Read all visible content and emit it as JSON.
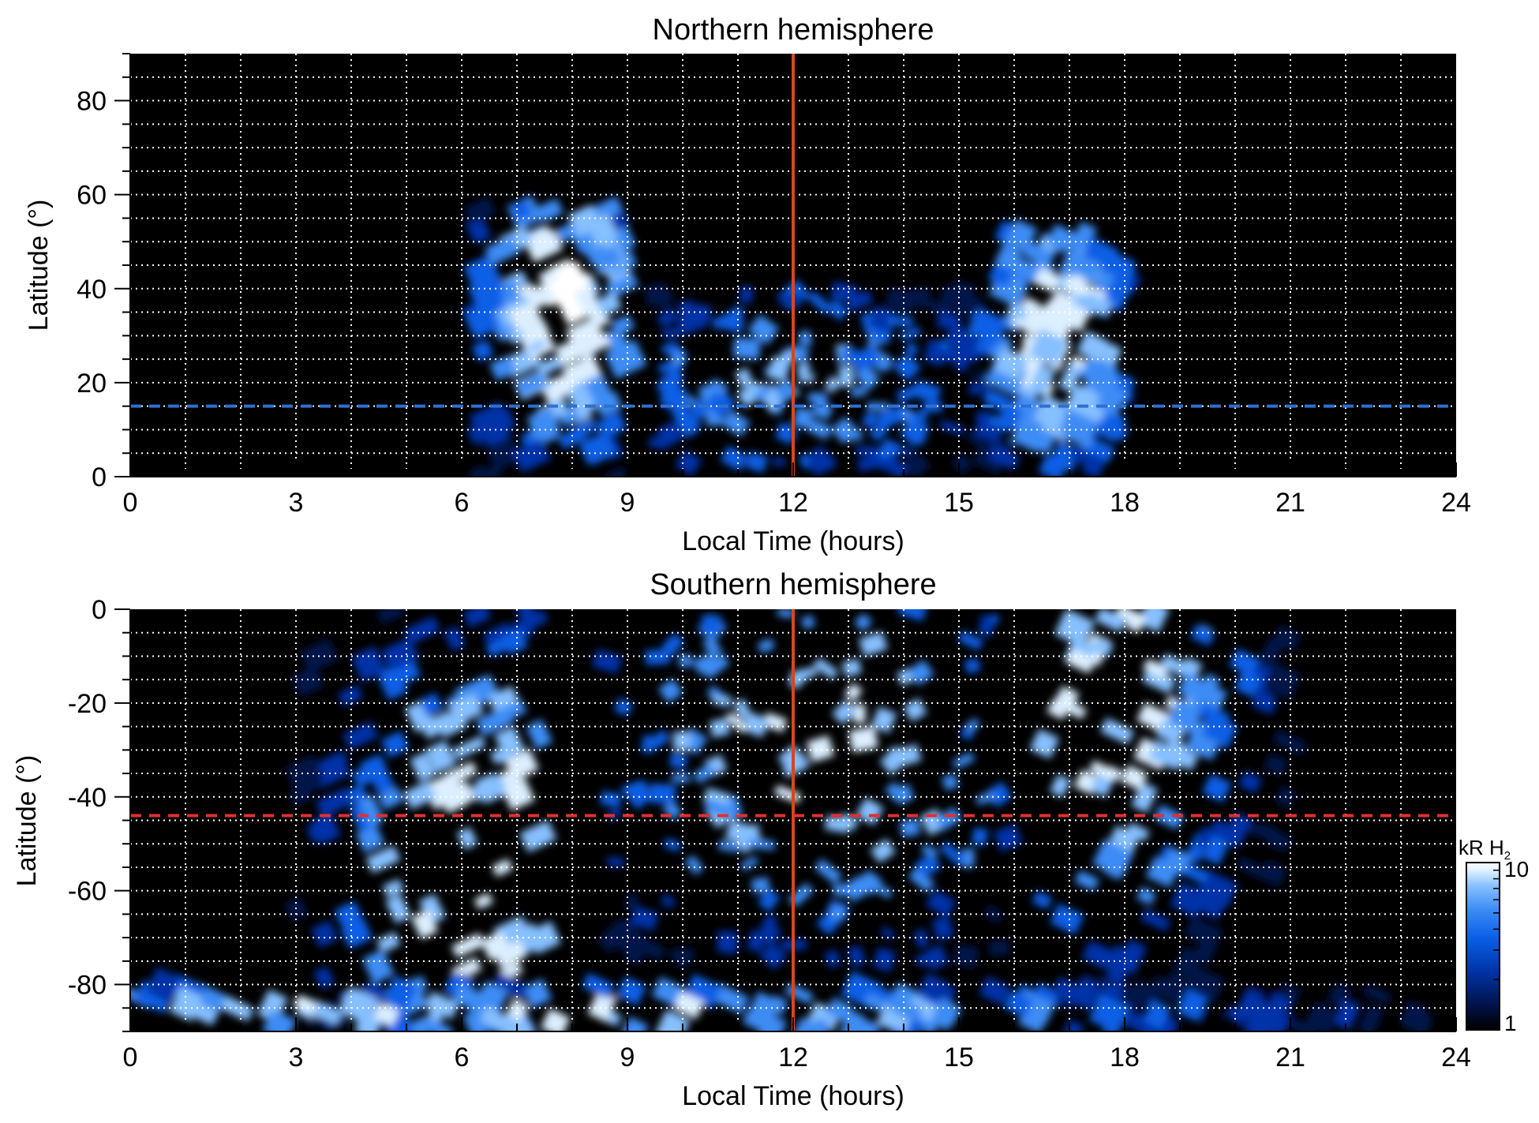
{
  "colors": {
    "background": "#000000",
    "colormap": [
      "#000000",
      "#00134a",
      "#0033a8",
      "#0a5fe6",
      "#3d8cf5",
      "#86c0ff",
      "#dcefff",
      "#ffffff"
    ],
    "noon_line": "#d8461f",
    "north_marker": "#2f6fd0",
    "south_marker": "#e03030",
    "grid": "#ffffff"
  },
  "chart_data": [
    {
      "type": "heatmap",
      "title": "Northern hemisphere",
      "xlabel": "Local Time (hours)",
      "ylabel": "Latitude (°)",
      "xlim": [
        0,
        24
      ],
      "ylim": [
        0,
        90
      ],
      "xticks": [
        0,
        3,
        6,
        9,
        12,
        15,
        18,
        21,
        24
      ],
      "xtick_labels": [
        "0",
        "3",
        "6",
        "9",
        "12",
        "15",
        "18",
        "21",
        "24"
      ],
      "yticks": [
        0,
        20,
        40,
        60,
        80
      ],
      "ytick_labels": [
        "0",
        "20",
        "40",
        "60",
        "80"
      ],
      "grid": true,
      "grid_x_step_hours": 1,
      "grid_y_step_deg": 5,
      "reference_lines": [
        {
          "orientation": "vertical",
          "value": 12,
          "style": "solid",
          "color": "#d8461f"
        },
        {
          "orientation": "horizontal",
          "value": 15,
          "style": "dashed",
          "color": "#2f6fd0"
        }
      ],
      "emission_regions": [
        {
          "feature": "dawn arc",
          "lt_range": [
            6.3,
            9.0
          ],
          "lat_range": [
            0,
            57
          ],
          "peak_lt": 7.8,
          "peak_lat": 35,
          "peak_kR": 10
        },
        {
          "feature": "noon patches",
          "lt_range": [
            9.5,
            15.5
          ],
          "lat_range": [
            2,
            40
          ],
          "peak_lt": 12.0,
          "peak_lat": 20,
          "peak_kR": 6
        },
        {
          "feature": "dusk arc",
          "lt_range": [
            15.5,
            18.0
          ],
          "lat_range": [
            0,
            52
          ],
          "peak_lt": 16.8,
          "peak_lat": 30,
          "peak_kR": 9
        }
      ]
    },
    {
      "type": "heatmap",
      "title": "Southern hemisphere",
      "xlabel": "Local Time (hours)",
      "ylabel": "Latitude (°)",
      "xlim": [
        0,
        24
      ],
      "ylim": [
        -90,
        0
      ],
      "xticks": [
        0,
        3,
        6,
        9,
        12,
        15,
        18,
        21,
        24
      ],
      "xtick_labels": [
        "0",
        "3",
        "6",
        "9",
        "12",
        "15",
        "18",
        "21",
        "24"
      ],
      "yticks": [
        0,
        -20,
        -40,
        -60,
        -80
      ],
      "ytick_labels": [
        "0",
        "-20",
        "-40",
        "-60",
        "-80"
      ],
      "grid": true,
      "grid_x_step_hours": 1,
      "grid_y_step_deg": 5,
      "reference_lines": [
        {
          "orientation": "vertical",
          "value": 12,
          "style": "solid",
          "color": "#d8461f"
        },
        {
          "orientation": "horizontal",
          "value": -44,
          "style": "dashed",
          "color": "#e03030"
        }
      ],
      "emission_regions": [
        {
          "feature": "dawn arc",
          "lt_range": [
            3.0,
            7.5
          ],
          "lat_range": [
            -90,
            0
          ],
          "peak_lt": 6.3,
          "peak_lat": -55,
          "peak_kR": 10
        },
        {
          "feature": "noon patches",
          "lt_range": [
            8.5,
            16.0
          ],
          "lat_range": [
            -75,
            0
          ],
          "peak_lt": 12.5,
          "peak_lat": -30,
          "peak_kR": 8
        },
        {
          "feature": "dusk arc",
          "lt_range": [
            16.5,
            21.0
          ],
          "lat_range": [
            -90,
            0
          ],
          "peak_lt": 17.5,
          "peak_lat": -20,
          "peak_kR": 10
        },
        {
          "feature": "polar band",
          "lt_range": [
            0,
            24
          ],
          "lat_range": [
            -90,
            -80
          ],
          "peak_lt": 6,
          "peak_lat": -86,
          "peak_kR": 9
        }
      ],
      "colorbar": {
        "unit_label": "kR H",
        "unit_subscript": "2",
        "scale": "log",
        "range": [
          1,
          10
        ],
        "tick_labels": [
          "10",
          "1"
        ]
      }
    }
  ]
}
